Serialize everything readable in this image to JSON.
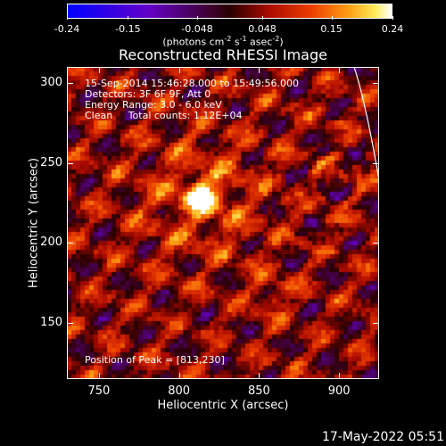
{
  "colorbar": {
    "ticks": [
      "-0.24",
      "-0.15",
      "-0.048",
      "0.048",
      "0.15",
      "0.24"
    ],
    "units_prefix": "(photons cm",
    "units_exp1": "-2",
    "units_mid1": " s",
    "units_exp2": "-1",
    "units_mid2": " asec",
    "units_exp3": "-2",
    "units_suffix": ")",
    "range": [
      -0.24,
      0.24
    ]
  },
  "title": "Reconstructed RHESSI Image",
  "annotations": {
    "time_range": "15-Sep-2014 15:46:28.000 to 15:49:56.000",
    "detectors": "Detectors: 3F 6F 9F, Att 0",
    "energy": "Energy Range: 3.0 - 6.0 keV",
    "clean": "Clean     Total counts: 1.12E+04",
    "peak": "Position of Peak = [813,230]"
  },
  "axes": {
    "xlabel": "Heliocentric X (arcsec)",
    "ylabel": "Heliocentric Y (arcsec)",
    "xticks": [
      "750",
      "800",
      "850",
      "900"
    ],
    "yticks": [
      "300",
      "250",
      "200",
      "150"
    ],
    "xlim": [
      730,
      925
    ],
    "ylim": [
      115,
      310
    ]
  },
  "image": {
    "peak_x": 813,
    "peak_y": 230,
    "colormap": "hot"
  },
  "timestamp": "17-May-2022 05:51"
}
